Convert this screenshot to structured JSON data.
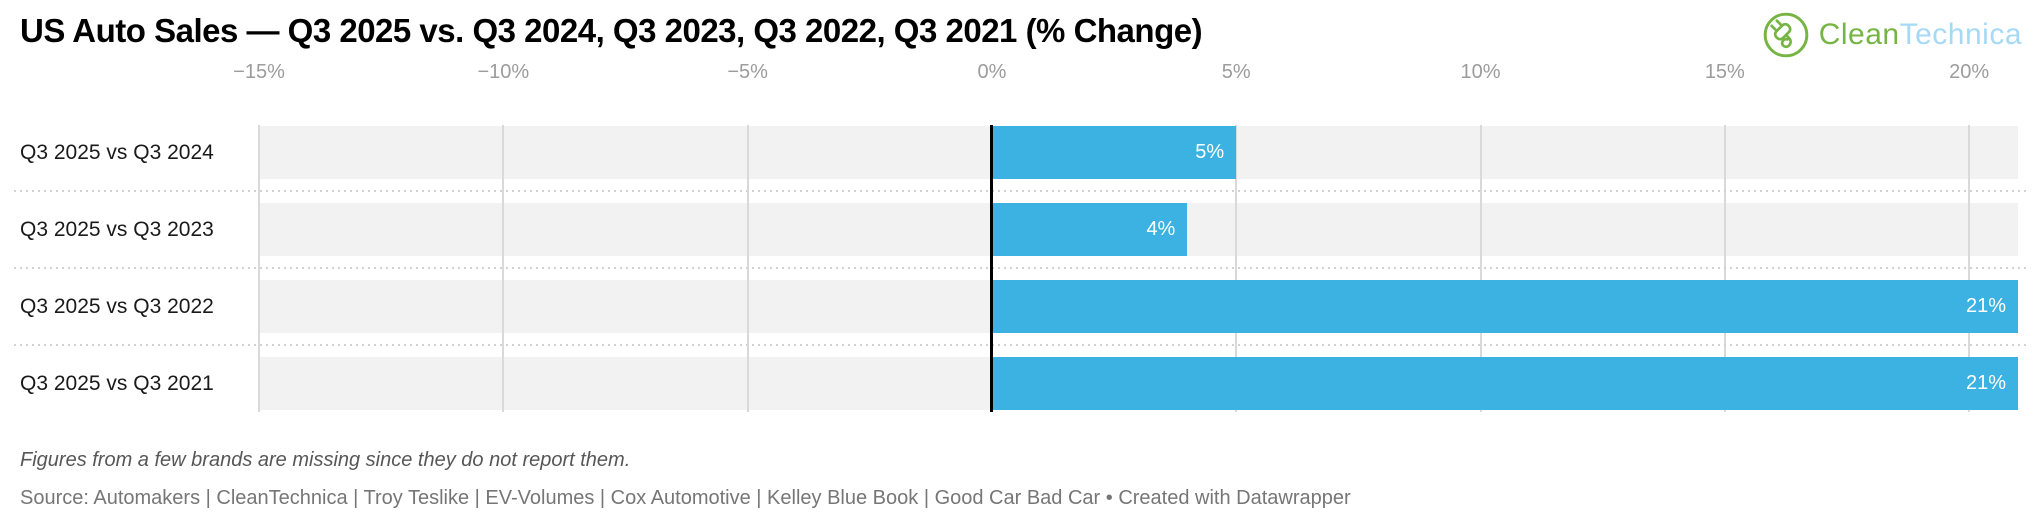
{
  "header": {
    "title": "US Auto Sales — Q3 2025 vs. Q3 2024, Q3 2023, Q3 2022, Q3 2021 (% Change)"
  },
  "logo": {
    "word1": "Clean",
    "word2": "Technica",
    "green": "#76b543",
    "light_blue": "#a6d9f5"
  },
  "chart_data": {
    "type": "bar",
    "orientation": "horizontal",
    "title": "US Auto Sales — Q3 2025 vs. Q3 2024, Q3 2023, Q3 2022, Q3 2021 (% Change)",
    "categories": [
      "Q3 2025 vs Q3 2024",
      "Q3 2025 vs Q3 2023",
      "Q3 2025 vs Q3 2022",
      "Q3 2025 vs Q3 2021"
    ],
    "values": [
      5,
      4,
      21,
      21
    ],
    "value_labels": [
      "5%",
      "4%",
      "21%",
      "21%"
    ],
    "xlim": [
      -15,
      21
    ],
    "ticks": [
      -15,
      -10,
      -5,
      0,
      5,
      10,
      15,
      20
    ],
    "tick_labels": [
      "−15%",
      "−10%",
      "−5%",
      "0%",
      "5%",
      "10%",
      "15%",
      "20%"
    ],
    "grid": true,
    "legend": "none",
    "bar_color": "#3cb2e2",
    "bar_value_color": "#ffffff",
    "track_color": "#f2f2f2",
    "grid_color": "#d9d9d9",
    "zero_line_color": "#000000",
    "tick_label_color": "#9c9c9c"
  },
  "footer": {
    "note": "Figures from a few brands are missing since they do not report them.",
    "source": "Source: Automakers | CleanTechnica | Troy Teslike | EV-Volumes | Cox Automotive | Kelley Blue Book | Good Car Bad Car • Created with Datawrapper"
  }
}
